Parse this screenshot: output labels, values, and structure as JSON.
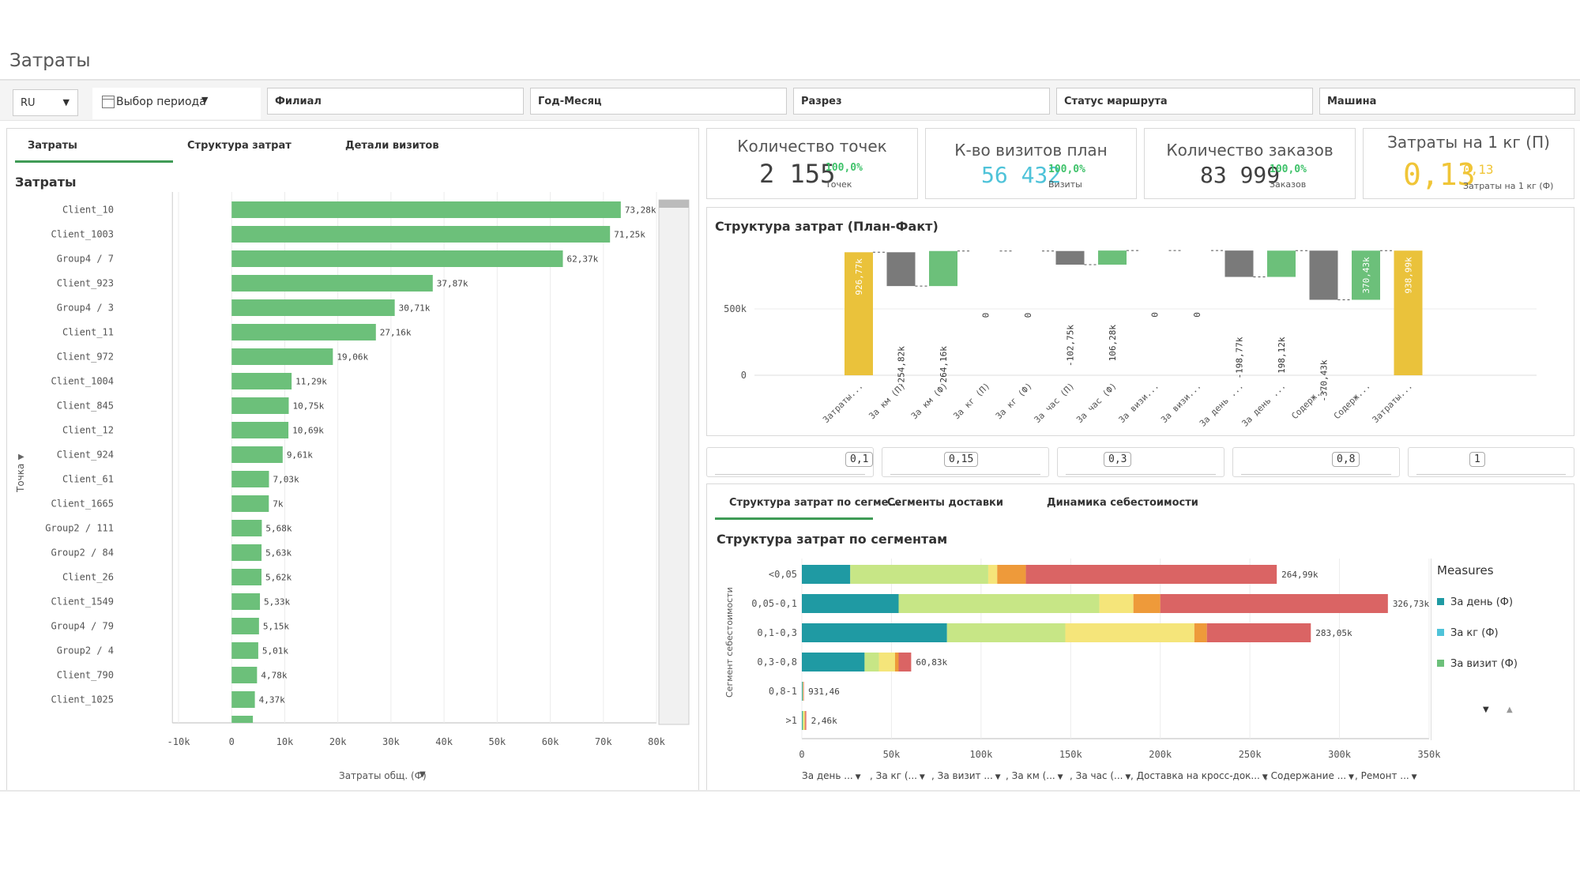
{
  "app_title": "Затраты",
  "filters": {
    "lang": "RU",
    "period": "Выбор периода",
    "branch": "Филиал",
    "yearmonth": "Год-Месяц",
    "cut": "Разрез",
    "route_status": "Статус маршрута",
    "vehicle": "Машина"
  },
  "left_panel": {
    "tabs": [
      "Затраты",
      "Структура затрат",
      "Детали визитов"
    ],
    "chart_title": "Затраты",
    "y_axis_label": "Точка",
    "x_axis_label": "Затраты общ. (Ф)"
  },
  "kpis": [
    {
      "title": "Количество точек",
      "value": "2 155",
      "pct": "100,0%",
      "sub": "Точек",
      "color": "#404040"
    },
    {
      "title": "К-во визитов план",
      "value": "56 432",
      "pct": "100,0%",
      "sub": "Визиты",
      "color": "#4fc3d9"
    },
    {
      "title": "Количество заказов",
      "value": "83 999",
      "pct": "100,0%",
      "sub": "Заказов",
      "color": "#404040"
    },
    {
      "title": "Затраты на 1 кг (П)",
      "value": "0,13",
      "pct": "0,13",
      "sub": "Затраты на 1 кг (Ф)",
      "color": "#f0c537"
    }
  ],
  "waterfall_title": "Структура затрат (План-Факт)",
  "thresholds": [
    "0,1",
    "0,15",
    "0,3",
    "0,8",
    "1"
  ],
  "segments_panel": {
    "tabs": [
      "Структура затрат по сегме...",
      "Сегменты доставки",
      "Динамика себестоимости"
    ],
    "chart_title": "Структура затрат по сегментам",
    "y_axis_label": "Сегмент себестоимости",
    "legend_title": "Measures",
    "legend": [
      {
        "label": "За день (Ф)",
        "color": "#1f9aa3"
      },
      {
        "label": "За кг (Ф)",
        "color": "#4fc3d9"
      },
      {
        "label": "За визит (Ф)",
        "color": "#6cc07a"
      }
    ],
    "measure_dropdowns": [
      "За день ...",
      ", За кг (...",
      ", За визит ...",
      ", За км (...",
      ", За час (...",
      ", Доставка на кросс-док...",
      ", Содержание ...",
      ", Ремонт ..."
    ]
  },
  "chart_data": [
    {
      "type": "bar",
      "orientation": "horizontal",
      "title": "Затраты",
      "xlabel": "Затраты общ. (Ф)",
      "ylabel": "Точка",
      "xlim": [
        -10000,
        80000
      ],
      "x_ticks": [
        "-10k",
        "0",
        "10k",
        "20k",
        "30k",
        "40k",
        "50k",
        "60k",
        "70k",
        "80k"
      ],
      "categories": [
        "Client_10",
        "Client_1003",
        "Group4 / 7",
        "Client_923",
        "Group4 / 3",
        "Client_11",
        "Client_972",
        "Client_1004",
        "Client_845",
        "Client_12",
        "Client_924",
        "Client_61",
        "Client_1665",
        "Group2 / 111",
        "Group2 / 84",
        "Client_26",
        "Client_1549",
        "Group4 / 79",
        "Group2 / 4",
        "Client_790",
        "Client_1025"
      ],
      "values": [
        73280,
        71250,
        62370,
        37870,
        30710,
        27160,
        19060,
        11290,
        10750,
        10690,
        9610,
        7030,
        7000,
        5680,
        5630,
        5620,
        5330,
        5150,
        5010,
        4780,
        4370
      ],
      "labels": [
        "73,28k",
        "71,25k",
        "62,37k",
        "37,87k",
        "30,71k",
        "27,16k",
        "19,06k",
        "11,29k",
        "10,75k",
        "10,69k",
        "9,61k",
        "7,03k",
        "7k",
        "5,68k",
        "5,63k",
        "5,62k",
        "5,33k",
        "5,15k",
        "5,01k",
        "4,78k",
        "4,37k"
      ],
      "color": "#6cc07a"
    },
    {
      "type": "waterfall",
      "title": "Структура затрат (План-Факт)",
      "y_ticks": [
        "0",
        "500k"
      ],
      "categories": [
        "Затраты...",
        "За км (П)",
        "За км (Ф)",
        "За кг (П)",
        "За кг (Ф)",
        "За час (П)",
        "За час (Ф)",
        "За визи...",
        "За визи...",
        "За день ...",
        "За день ...",
        "Содерж...",
        "Содерж...",
        "Затраты..."
      ],
      "values": [
        926770,
        -254820,
        264160,
        0,
        0,
        -102750,
        106280,
        0,
        0,
        -198770,
        198120,
        -370430,
        370430,
        938990
      ],
      "labels": [
        "926,77k",
        "-254,82k",
        "264,16k",
        "0",
        "0",
        "-102,75k",
        "106,28k",
        "0",
        "0",
        "-198,77k",
        "198,12k",
        "-370,43k",
        "370,43k",
        "938,99k"
      ],
      "colors": {
        "total": "#eac23b",
        "negative": "#7a7a7a",
        "positive": "#6cc07a"
      }
    },
    {
      "type": "bar",
      "stacked": true,
      "orientation": "horizontal",
      "title": "Структура затрат по сегментам",
      "ylabel": "Сегмент себестоимости",
      "xlim": [
        0,
        350000
      ],
      "x_ticks": [
        "0",
        "50k",
        "100k",
        "150k",
        "200k",
        "250k",
        "300k",
        "350k"
      ],
      "categories": [
        "<0,05",
        "0,05-0,1",
        "0,1-0,3",
        "0,3-0,8",
        "0,8-1",
        ">1"
      ],
      "totals_labels": [
        "264,99k",
        "326,73k",
        "283,05k",
        "60,83k",
        "931,46",
        "2,46k"
      ],
      "series": [
        {
          "color": "#1f9aa3",
          "values": [
            27000,
            54000,
            81000,
            35000,
            400,
            400
          ]
        },
        {
          "color": "#c7e686",
          "values": [
            77000,
            112000,
            66000,
            8000,
            300,
            700
          ]
        },
        {
          "color": "#f5e57a",
          "values": [
            5000,
            19000,
            72000,
            9000,
            100,
            500
          ]
        },
        {
          "color": "#ee9a3a",
          "values": [
            16000,
            15000,
            7000,
            2000,
            50,
            300
          ]
        },
        {
          "color": "#da6464",
          "values": [
            140000,
            127000,
            58000,
            7000,
            81,
            560
          ]
        }
      ]
    }
  ]
}
